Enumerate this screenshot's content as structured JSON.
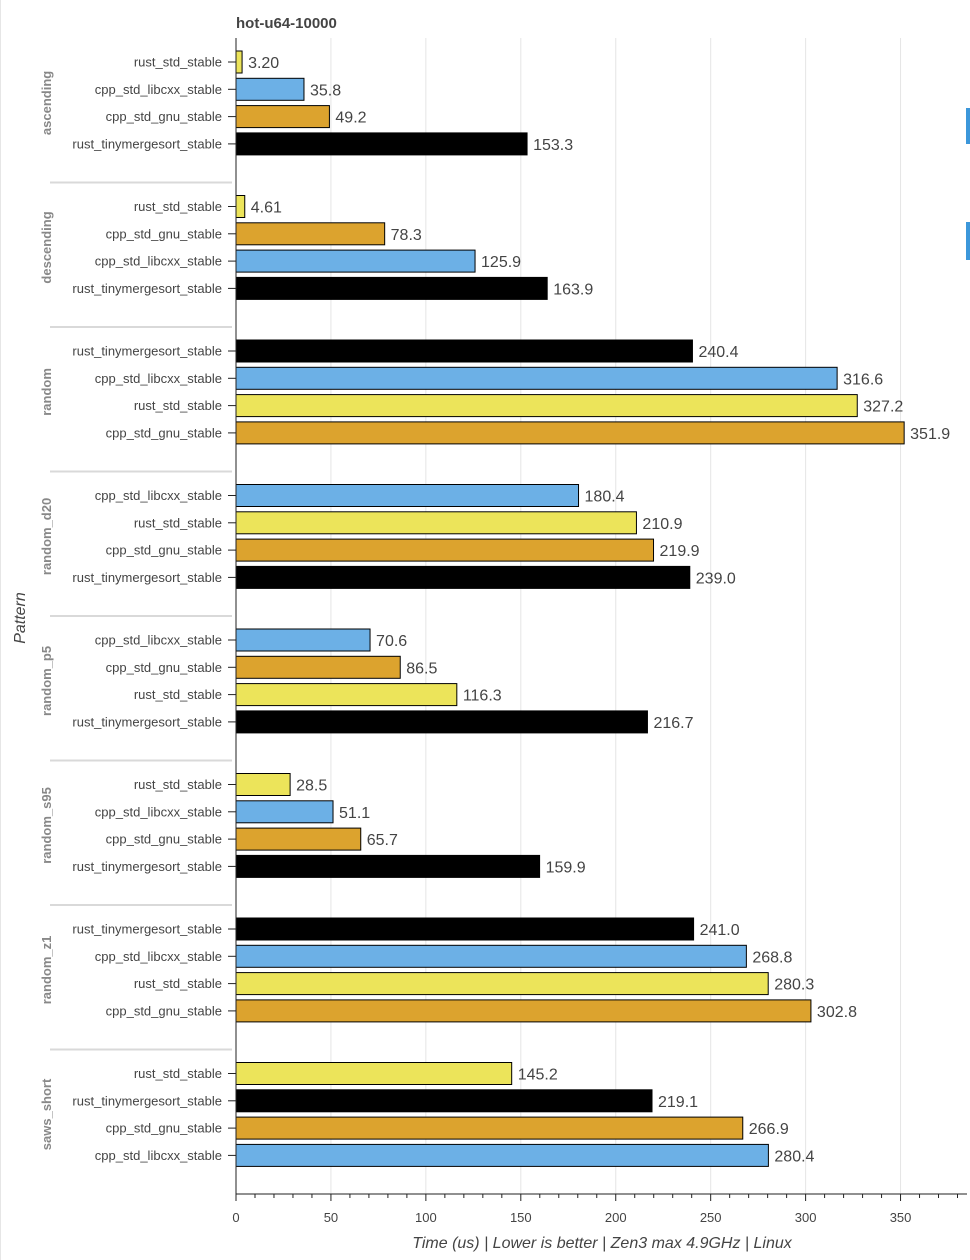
{
  "chart_data": {
    "type": "bar",
    "orientation": "horizontal",
    "title": "hot-u64-10000",
    "xlabel": "Time (us) | Lower is better | Zen3 max 4.9GHz | Linux",
    "ylabel": "Pattern",
    "xlim": [
      0,
      385
    ],
    "xticks": [
      0,
      50,
      100,
      150,
      200,
      250,
      300,
      350
    ],
    "xtick_labels": [
      "0",
      "50",
      "100",
      "150",
      "200",
      "250",
      "300",
      "350"
    ],
    "grid": true,
    "colors": {
      "rust_std_stable": "#ece45a",
      "cpp_std_libcxx_stable": "#6cb0e6",
      "cpp_std_gnu_stable": "#dca32e",
      "rust_tinymergesort_stable": "#000000"
    },
    "groups": [
      {
        "pattern": "ascending",
        "bars": [
          {
            "name": "rust_std_stable",
            "value": 3.2,
            "label": "3.20"
          },
          {
            "name": "cpp_std_libcxx_stable",
            "value": 35.8,
            "label": "35.8"
          },
          {
            "name": "cpp_std_gnu_stable",
            "value": 49.2,
            "label": "49.2"
          },
          {
            "name": "rust_tinymergesort_stable",
            "value": 153.3,
            "label": "153.3"
          }
        ]
      },
      {
        "pattern": "descending",
        "bars": [
          {
            "name": "rust_std_stable",
            "value": 4.61,
            "label": "4.61"
          },
          {
            "name": "cpp_std_gnu_stable",
            "value": 78.3,
            "label": "78.3"
          },
          {
            "name": "cpp_std_libcxx_stable",
            "value": 125.9,
            "label": "125.9"
          },
          {
            "name": "rust_tinymergesort_stable",
            "value": 163.9,
            "label": "163.9"
          }
        ]
      },
      {
        "pattern": "random",
        "bars": [
          {
            "name": "rust_tinymergesort_stable",
            "value": 240.4,
            "label": "240.4"
          },
          {
            "name": "cpp_std_libcxx_stable",
            "value": 316.6,
            "label": "316.6"
          },
          {
            "name": "rust_std_stable",
            "value": 327.2,
            "label": "327.2"
          },
          {
            "name": "cpp_std_gnu_stable",
            "value": 351.9,
            "label": "351.9"
          }
        ]
      },
      {
        "pattern": "random_d20",
        "bars": [
          {
            "name": "cpp_std_libcxx_stable",
            "value": 180.4,
            "label": "180.4"
          },
          {
            "name": "rust_std_stable",
            "value": 210.9,
            "label": "210.9"
          },
          {
            "name": "cpp_std_gnu_stable",
            "value": 219.9,
            "label": "219.9"
          },
          {
            "name": "rust_tinymergesort_stable",
            "value": 239.0,
            "label": "239.0"
          }
        ]
      },
      {
        "pattern": "random_p5",
        "bars": [
          {
            "name": "cpp_std_libcxx_stable",
            "value": 70.6,
            "label": "70.6"
          },
          {
            "name": "cpp_std_gnu_stable",
            "value": 86.5,
            "label": "86.5"
          },
          {
            "name": "rust_std_stable",
            "value": 116.3,
            "label": "116.3"
          },
          {
            "name": "rust_tinymergesort_stable",
            "value": 216.7,
            "label": "216.7"
          }
        ]
      },
      {
        "pattern": "random_s95",
        "bars": [
          {
            "name": "rust_std_stable",
            "value": 28.5,
            "label": "28.5"
          },
          {
            "name": "cpp_std_libcxx_stable",
            "value": 51.1,
            "label": "51.1"
          },
          {
            "name": "cpp_std_gnu_stable",
            "value": 65.7,
            "label": "65.7"
          },
          {
            "name": "rust_tinymergesort_stable",
            "value": 159.9,
            "label": "159.9"
          }
        ]
      },
      {
        "pattern": "random_z1",
        "bars": [
          {
            "name": "rust_tinymergesort_stable",
            "value": 241.0,
            "label": "241.0"
          },
          {
            "name": "cpp_std_libcxx_stable",
            "value": 268.8,
            "label": "268.8"
          },
          {
            "name": "rust_std_stable",
            "value": 280.3,
            "label": "280.3"
          },
          {
            "name": "cpp_std_gnu_stable",
            "value": 302.8,
            "label": "302.8"
          }
        ]
      },
      {
        "pattern": "saws_short",
        "bars": [
          {
            "name": "rust_std_stable",
            "value": 145.2,
            "label": "145.2"
          },
          {
            "name": "rust_tinymergesort_stable",
            "value": 219.1,
            "label": "219.1"
          },
          {
            "name": "cpp_std_gnu_stable",
            "value": 266.9,
            "label": "266.9"
          },
          {
            "name": "cpp_std_libcxx_stable",
            "value": 280.4,
            "label": "280.4"
          }
        ]
      }
    ]
  }
}
